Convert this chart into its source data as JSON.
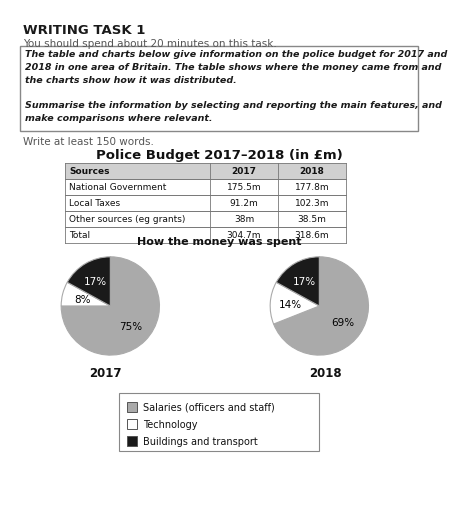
{
  "title_main": "WRITING TASK 1",
  "subtitle": "You should spend about 20 minutes on this task.",
  "box_text_line1": "The table and charts below give information on the police budget for 2017 and",
  "box_text_line2": "2018 in one area of Britain. The table shows where the money came from and",
  "box_text_line3": "the charts show how it was distributed.",
  "box_text_line4": "",
  "box_text_line5": "Summarise the information by selecting and reporting the main features, and",
  "box_text_line6": "make comparisons where relevant.",
  "write_text": "Write at least 150 words.",
  "table_title": "Police Budget 2017–2018 (in £m)",
  "table_headers": [
    "Sources",
    "2017",
    "2018"
  ],
  "table_rows": [
    [
      "National Government",
      "175.5m",
      "177.8m"
    ],
    [
      "Local Taxes",
      "91.2m",
      "102.3m"
    ],
    [
      "Other sources (eg grants)",
      "38m",
      "38.5m"
    ],
    [
      "Total",
      "304.7m",
      "318.6m"
    ]
  ],
  "pie_title": "How the money was spent",
  "pie_2017": [
    75,
    8,
    17
  ],
  "pie_2018": [
    69,
    14,
    17
  ],
  "pie_labels_2017": [
    "75%",
    "8%",
    "17%"
  ],
  "pie_labels_2018": [
    "69%",
    "14%",
    "17%"
  ],
  "pie_colors": [
    "#aaaaaa",
    "#ffffff",
    "#1a1a1a"
  ],
  "pie_edge_color": "#888888",
  "pie_year_labels": [
    "2017",
    "2018"
  ],
  "legend_labels": [
    "Salaries (officers and staff)",
    "Technology",
    "Buildings and transport"
  ],
  "legend_colors": [
    "#aaaaaa",
    "#ffffff",
    "#1a1a1a"
  ],
  "bg_color": "#ffffff"
}
